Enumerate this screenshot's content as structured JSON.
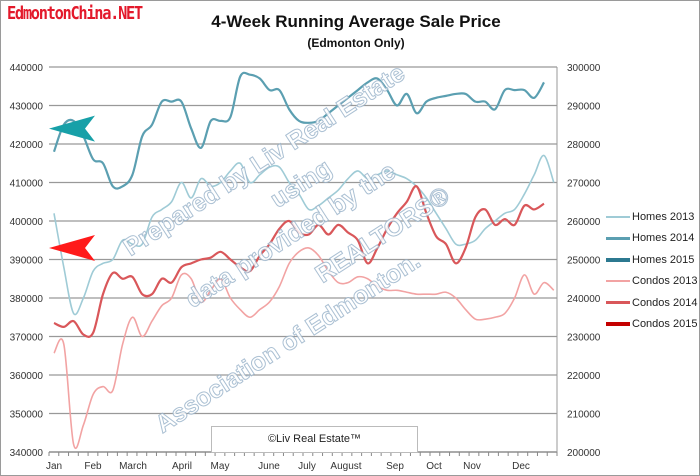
{
  "logo": "EdmontonChina.NET",
  "chart_data": {
    "type": "line",
    "title": "4-Week Running Average Sale Price",
    "subtitle": "(Edmonton Only)",
    "x_ticks": [
      "Jan",
      "Feb",
      "March",
      "April",
      "May",
      "June",
      "July",
      "August",
      "Sep",
      "Oct",
      "Nov",
      "Dec"
    ],
    "x_week_range": [
      1,
      52
    ],
    "y_left": {
      "min": 340000,
      "max": 440000,
      "step": 10000,
      "ticks": [
        "340000",
        "350000",
        "360000",
        "370000",
        "380000",
        "390000",
        "400000",
        "410000",
        "420000",
        "430000",
        "440000"
      ]
    },
    "y_right": {
      "min": 200000,
      "max": 300000,
      "step": 10000,
      "ticks": [
        "200000",
        "210000",
        "220000",
        "230000",
        "240000",
        "250000",
        "260000",
        "270000",
        "280000",
        "290000",
        "300000"
      ]
    },
    "grid": true,
    "legend_position": "right",
    "series": [
      {
        "name": "Homes 2013",
        "axis": "left",
        "color": "#9fcbd6",
        "width": 1.6,
        "values": [
          402000,
          388000,
          376000,
          380000,
          387000,
          389000,
          390000,
          395000,
          394000,
          394000,
          401000,
          403000,
          405000,
          410000,
          406000,
          411000,
          409000,
          410000,
          413000,
          415000,
          410000,
          412000,
          414000,
          414000,
          410000,
          407000,
          403000,
          404000,
          406000,
          408000,
          411000,
          413000,
          411000,
          412000,
          413000,
          412000,
          411000,
          409000,
          406000,
          402000,
          398000,
          394000,
          394000,
          395000,
          398000,
          400000,
          402000,
          403000,
          407000,
          412000,
          417000,
          410000
        ]
      },
      {
        "name": "Homes 2014",
        "axis": "left",
        "color": "#5b9fb1",
        "width": 2.2,
        "values": [
          418000,
          425000,
          426000,
          422000,
          416000,
          415000,
          409000,
          409000,
          412000,
          422000,
          425000,
          431000,
          431000,
          431000,
          424000,
          419000,
          426000,
          426000,
          427000,
          437500,
          438000,
          437000,
          434000,
          434000,
          429000,
          426000,
          425500,
          426000,
          428000,
          430000,
          432000,
          434000,
          436000,
          437000,
          434000,
          430000,
          433000,
          428000,
          431000,
          432000,
          432500,
          433000,
          433000,
          431000,
          431000,
          429000,
          434000,
          434000,
          434000,
          432000,
          436000
        ]
      },
      {
        "name": "Homes 2015",
        "axis": "left",
        "color": "#2c7990",
        "width": 3,
        "values": []
      },
      {
        "name": "Condos 2013",
        "axis": "right",
        "color": "#f2a3a3",
        "width": 1.6,
        "values": [
          225700,
          228000,
          202000,
          207000,
          215000,
          217000,
          216000,
          228000,
          235000,
          230000,
          234000,
          238000,
          240000,
          246000,
          245000,
          239000,
          242000,
          245000,
          240000,
          237000,
          235000,
          237000,
          239000,
          243000,
          249000,
          252000,
          253000,
          251000,
          247000,
          244000,
          244000,
          245500,
          245000,
          243000,
          242000,
          242000,
          241500,
          241000,
          241000,
          241000,
          241500,
          240000,
          237000,
          234500,
          234500,
          235000,
          236000,
          240000,
          246000,
          241000,
          244000,
          242000
        ]
      },
      {
        "name": "Condos 2014",
        "axis": "right",
        "color": "#d9575a",
        "width": 2.2,
        "values": [
          233500,
          232500,
          234000,
          230500,
          231000,
          241000,
          246500,
          245000,
          245500,
          241000,
          241000,
          245000,
          244000,
          248000,
          249000,
          250000,
          250500,
          252000,
          250000,
          248000,
          247000,
          251000,
          254000,
          258000,
          260000,
          257000,
          256500,
          259000,
          256500,
          259000,
          257000,
          255000,
          249000,
          253000,
          258000,
          262000,
          265000,
          269000,
          262000,
          256000,
          254000,
          249000,
          253000,
          261000,
          263000,
          259000,
          260500,
          259000,
          264000,
          263000,
          264500
        ]
      },
      {
        "name": "Condos 2015",
        "axis": "right",
        "color": "#c40000",
        "width": 3,
        "values": []
      }
    ],
    "annotations": [
      {
        "type": "arrow",
        "color": "#17a0a8",
        "axis": "left",
        "value": 424000
      },
      {
        "type": "arrow",
        "color": "#ff1a1a",
        "axis": "left",
        "value": 393000
      }
    ]
  },
  "watermark": [
    "Prepared by Liv Real Estate",
    "using",
    "data provided by the",
    "REALTORS®",
    "Association of Edmonton."
  ],
  "copyright": "©Liv Real Estate™"
}
